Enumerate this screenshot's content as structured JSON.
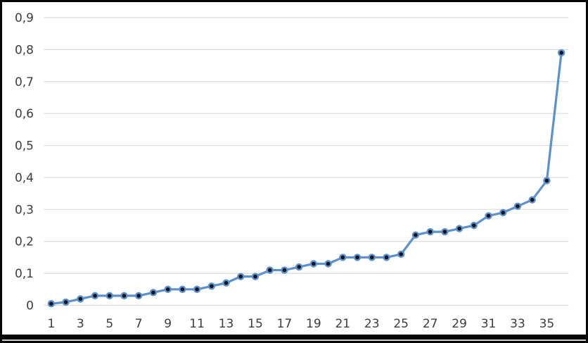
{
  "frame": {
    "background": "#ffffff",
    "border_color": "#060606"
  },
  "chart_data": {
    "type": "line",
    "title": "",
    "xlabel": "",
    "ylabel": "",
    "legend": "none",
    "grid": "horizontal",
    "decimal_separator": ",",
    "x": [
      1,
      2,
      3,
      4,
      5,
      6,
      7,
      8,
      9,
      10,
      11,
      12,
      13,
      14,
      15,
      16,
      17,
      18,
      19,
      20,
      21,
      22,
      23,
      24,
      25,
      26,
      27,
      28,
      29,
      30,
      31,
      32,
      33,
      34,
      35,
      36
    ],
    "values": [
      0.005,
      0.01,
      0.02,
      0.03,
      0.03,
      0.03,
      0.03,
      0.04,
      0.05,
      0.05,
      0.05,
      0.06,
      0.07,
      0.09,
      0.09,
      0.11,
      0.11,
      0.12,
      0.13,
      0.13,
      0.15,
      0.15,
      0.15,
      0.15,
      0.16,
      0.22,
      0.23,
      0.23,
      0.24,
      0.25,
      0.28,
      0.29,
      0.31,
      0.33,
      0.39,
      0.79
    ],
    "xlim": [
      0.5,
      36.5
    ],
    "ylim": [
      0,
      0.9
    ],
    "y_ticks": [
      0,
      0.1,
      0.2,
      0.3,
      0.4,
      0.5,
      0.6,
      0.7,
      0.8,
      0.9
    ],
    "y_ticklabels": [
      "0",
      "0,1",
      "0,2",
      "0,3",
      "0,4",
      "0,5",
      "0,6",
      "0,7",
      "0,8",
      "0,9"
    ],
    "x_tick_positions": [
      1,
      3,
      5,
      7,
      9,
      11,
      13,
      15,
      17,
      19,
      21,
      23,
      25,
      27,
      29,
      31,
      33,
      35
    ],
    "x_ticklabels": [
      "1",
      "3",
      "5",
      "7",
      "9",
      "11",
      "13",
      "15",
      "17",
      "19",
      "21",
      "23",
      "25",
      "27",
      "29",
      "31",
      "33",
      "35"
    ],
    "colors": {
      "line": "#5b92cd",
      "marker_fill": "#10131f",
      "marker_ring": "#5b92cd",
      "gridline": "#d9d9d9",
      "tick_label": "#3d3d3d"
    }
  }
}
